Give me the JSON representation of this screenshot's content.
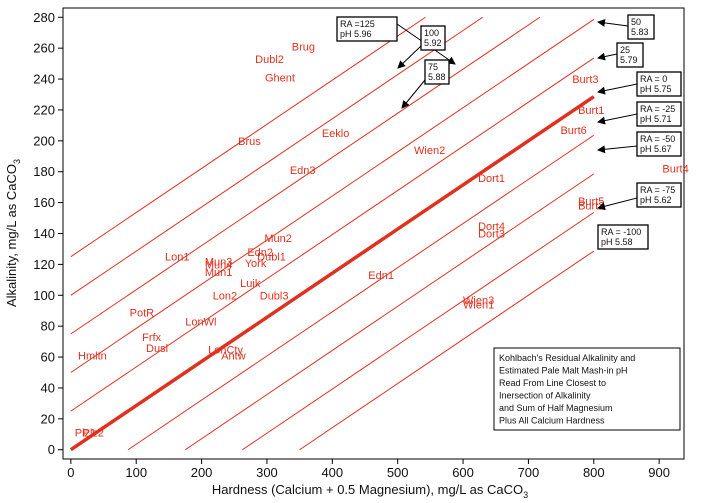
{
  "chart_data": {
    "type": "line",
    "x_label": "Hardness (Calcium + 0.5 Magnesium), mg/L as CaCO",
    "x_label_sub": "3",
    "y_label": "Alkalinity, mg/L as CaCO",
    "y_label_sub": "3",
    "xlim": [
      -12,
      938
    ],
    "ylim": [
      -6,
      286
    ],
    "xticks": [
      0,
      100,
      200,
      300,
      400,
      500,
      600,
      700,
      800,
      900
    ],
    "yticks": [
      0,
      20,
      40,
      60,
      80,
      100,
      120,
      140,
      160,
      180,
      200,
      220,
      240,
      260,
      280
    ],
    "series": [
      {
        "color": "#e0301e",
        "line_width": 1,
        "x": [
          0,
          542.5
        ],
        "values": [
          125,
          280
        ]
      },
      {
        "color": "#e0301e",
        "line_width": 1,
        "x": [
          0,
          630
        ],
        "values": [
          100,
          280
        ]
      },
      {
        "color": "#e0301e",
        "line_width": 1,
        "x": [
          0,
          717.5
        ],
        "values": [
          75,
          280
        ]
      },
      {
        "color": "#e0301e",
        "line_width": 1,
        "x": [
          0,
          800
        ],
        "values": [
          50,
          278.6
        ]
      },
      {
        "color": "#e0301e",
        "line_width": 1,
        "x": [
          0,
          800
        ],
        "values": [
          25,
          253.6
        ]
      },
      {
        "color": "#e0301e",
        "line_width": 3.5,
        "x": [
          0,
          800
        ],
        "values": [
          0,
          228.6
        ]
      },
      {
        "color": "#e0301e",
        "line_width": 1,
        "x": [
          87.5,
          800
        ],
        "values": [
          0,
          203.6
        ]
      },
      {
        "color": "#e0301e",
        "line_width": 1,
        "x": [
          175,
          800
        ],
        "values": [
          0,
          178.6
        ]
      },
      {
        "color": "#e0301e",
        "line_width": 1,
        "x": [
          262.5,
          800
        ],
        "values": [
          0,
          153.6
        ]
      },
      {
        "color": "#e0301e",
        "line_width": 1,
        "x": [
          350,
          800
        ],
        "values": [
          0,
          128.6
        ]
      }
    ],
    "points": {
      "color": "#e0301e",
      "labels": [
        "Brug",
        "Dubl2",
        "Ghent",
        "Brus",
        "Eeklo",
        "Edn3",
        "Wien2",
        "Burt3",
        "Burt1",
        "Burt6",
        "Dort1",
        "Burt4",
        "Burt5",
        "Burt2",
        "Dort4",
        "Dort3",
        "Lon1",
        "Mun2",
        "Mun3",
        "Mun4",
        "Edn2",
        "Dubl1",
        "York",
        "Mun1",
        "Luik",
        "Lon2",
        "Dubl3",
        "Edn1",
        "PotR",
        "LonWl",
        "Frfx",
        "Dusl",
        "LonCty",
        "Antw",
        "Hmltn",
        "Wien3",
        "Wien1",
        "Plz1",
        "Plz2"
      ],
      "x": [
        338,
        282,
        297,
        256,
        384,
        335,
        525,
        767,
        776,
        749,
        623,
        905,
        776,
        776,
        623,
        623,
        144,
        296,
        205,
        205,
        270,
        285,
        266,
        205,
        259,
        217,
        289,
        455,
        90,
        175,
        109,
        115,
        210,
        230,
        11,
        600,
        600,
        6,
        18
      ],
      "y": [
        261,
        253,
        241,
        200,
        205,
        181,
        194,
        240,
        220,
        207,
        176,
        182,
        161,
        158,
        145,
        140,
        125,
        137,
        122,
        120,
        128,
        125,
        121,
        115,
        108,
        100,
        100,
        113,
        89,
        83,
        73,
        66,
        65,
        61,
        61,
        97,
        94,
        11,
        11
      ]
    },
    "annotations": [
      [
        "RA =125",
        "pH 5.96"
      ],
      [
        "100",
        "5.92"
      ],
      [
        "75",
        "5.88"
      ],
      [
        "50",
        "5.83"
      ],
      [
        "25",
        "5.79"
      ],
      [
        "RA = 0",
        "pH 5.75"
      ],
      [
        "RA = -25",
        "pH 5.71"
      ],
      [
        "RA = -50",
        "pH 5.67"
      ],
      [
        "RA = -75",
        "pH 5.62"
      ],
      [
        "RA = -100",
        "pH 5.58"
      ]
    ],
    "note": [
      "Kohlbach's Residual Alkalinity and",
      "Estimated Pale Malt Mash-in pH",
      "Read From Line Closest to",
      "Inersection of Alkalinity",
      "and Sum of Half Magnesium",
      "Plus All Calcium Hardness"
    ]
  }
}
